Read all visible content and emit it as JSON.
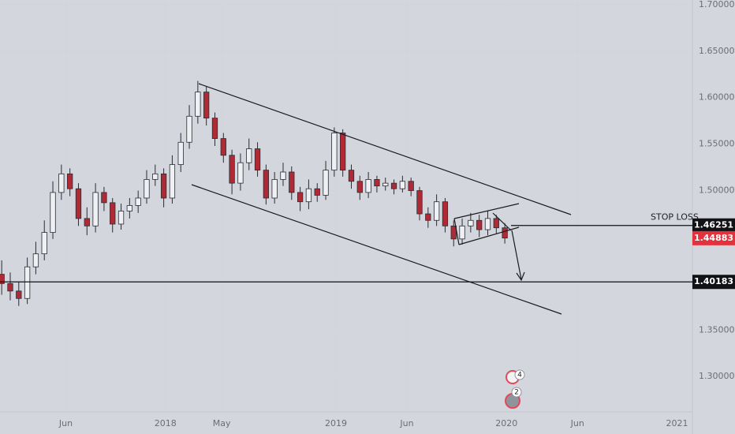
{
  "chart_data": {
    "type": "candlestick",
    "up_color": "#eef0f4",
    "down_color": "#b02a35",
    "wick_color": "#2a2c33",
    "x": [
      2017.04,
      2017.09,
      2017.14,
      2017.19,
      2017.24,
      2017.29,
      2017.34,
      2017.39,
      2017.44,
      2017.49,
      2017.54,
      2017.59,
      2017.64,
      2017.69,
      2017.74,
      2017.79,
      2017.84,
      2017.89,
      2017.94,
      2017.99,
      2018.04,
      2018.09,
      2018.14,
      2018.19,
      2018.24,
      2018.29,
      2018.34,
      2018.39,
      2018.44,
      2018.49,
      2018.54,
      2018.59,
      2018.64,
      2018.69,
      2018.74,
      2018.79,
      2018.84,
      2018.89,
      2018.94,
      2018.99,
      2019.04,
      2019.09,
      2019.14,
      2019.19,
      2019.24,
      2019.29,
      2019.34,
      2019.39,
      2019.44,
      2019.49,
      2019.54,
      2019.59,
      2019.64,
      2019.69,
      2019.74,
      2019.79,
      2019.84,
      2019.89,
      2019.94,
      2019.99
    ],
    "open": [
      1.41,
      1.4,
      1.392,
      1.384,
      1.418,
      1.432,
      1.455,
      1.498,
      1.518,
      1.502,
      1.47,
      1.462,
      1.498,
      1.487,
      1.464,
      1.478,
      1.484,
      1.492,
      1.512,
      1.518,
      1.492,
      1.528,
      1.552,
      1.58,
      1.606,
      1.578,
      1.556,
      1.538,
      1.508,
      1.53,
      1.545,
      1.522,
      1.492,
      1.512,
      1.52,
      1.498,
      1.488,
      1.502,
      1.495,
      1.522,
      1.562,
      1.522,
      1.51,
      1.498,
      1.512,
      1.505,
      1.508,
      1.502,
      1.51,
      1.5,
      1.475,
      1.468,
      1.488,
      1.462,
      1.448,
      1.462,
      1.468,
      1.458,
      1.47,
      1.46
    ],
    "high": [
      1.425,
      1.412,
      1.402,
      1.428,
      1.445,
      1.468,
      1.51,
      1.528,
      1.524,
      1.508,
      1.482,
      1.508,
      1.504,
      1.492,
      1.486,
      1.492,
      1.5,
      1.522,
      1.528,
      1.524,
      1.538,
      1.562,
      1.592,
      1.618,
      1.612,
      1.584,
      1.562,
      1.544,
      1.54,
      1.556,
      1.552,
      1.528,
      1.52,
      1.53,
      1.526,
      1.504,
      1.512,
      1.508,
      1.532,
      1.568,
      1.566,
      1.528,
      1.516,
      1.52,
      1.516,
      1.514,
      1.512,
      1.516,
      1.514,
      1.504,
      1.482,
      1.496,
      1.492,
      1.468,
      1.47,
      1.476,
      1.474,
      1.478,
      1.474,
      1.465
    ],
    "low": [
      1.388,
      1.382,
      1.376,
      1.378,
      1.41,
      1.425,
      1.448,
      1.49,
      1.494,
      1.462,
      1.452,
      1.455,
      1.478,
      1.455,
      1.458,
      1.47,
      1.476,
      1.486,
      1.505,
      1.482,
      1.486,
      1.52,
      1.545,
      1.572,
      1.57,
      1.548,
      1.53,
      1.496,
      1.5,
      1.522,
      1.515,
      1.485,
      1.486,
      1.505,
      1.49,
      1.478,
      1.48,
      1.488,
      1.49,
      1.515,
      1.515,
      1.502,
      1.49,
      1.492,
      1.498,
      1.5,
      1.496,
      1.498,
      1.494,
      1.468,
      1.46,
      1.462,
      1.455,
      1.44,
      1.442,
      1.455,
      1.45,
      1.452,
      1.454,
      1.443
    ],
    "close": [
      1.4,
      1.392,
      1.384,
      1.418,
      1.432,
      1.455,
      1.498,
      1.518,
      1.502,
      1.47,
      1.462,
      1.498,
      1.487,
      1.464,
      1.478,
      1.484,
      1.492,
      1.512,
      1.518,
      1.492,
      1.528,
      1.552,
      1.58,
      1.606,
      1.578,
      1.556,
      1.538,
      1.508,
      1.53,
      1.545,
      1.522,
      1.492,
      1.512,
      1.52,
      1.498,
      1.488,
      1.502,
      1.495,
      1.522,
      1.562,
      1.522,
      1.51,
      1.498,
      1.512,
      1.505,
      1.508,
      1.502,
      1.51,
      1.5,
      1.475,
      1.468,
      1.488,
      1.462,
      1.448,
      1.462,
      1.468,
      1.458,
      1.47,
      1.46,
      1.449
    ],
    "xlim": [
      2017.03,
      2021.09
    ],
    "ylim": [
      1.262,
      1.705
    ],
    "xticks": [
      {
        "value": 2017.416,
        "label": "Jun"
      },
      {
        "value": 2018,
        "label": "2018"
      },
      {
        "value": 2018.33,
        "label": "May"
      },
      {
        "value": 2019,
        "label": "2019"
      },
      {
        "value": 2019.416,
        "label": "Jun"
      },
      {
        "value": 2020,
        "label": "2020"
      },
      {
        "value": 2020.416,
        "label": "Jun"
      },
      {
        "value": 2021,
        "label": "2021"
      }
    ],
    "yticks": [
      {
        "value": 1.3,
        "label": "1.30000"
      },
      {
        "value": 1.35,
        "label": "1.35000"
      },
      {
        "value": 1.4,
        "label": "1.40000"
      },
      {
        "value": 1.45,
        "label": "1.45000"
      },
      {
        "value": 1.5,
        "label": "1.50000"
      },
      {
        "value": 1.55,
        "label": "1.55000"
      },
      {
        "value": 1.6,
        "label": "1.60000"
      },
      {
        "value": 1.65,
        "label": "1.65000"
      },
      {
        "value": 1.7,
        "label": "1.70000"
      }
    ],
    "price_lines": [
      {
        "value": 1.46251,
        "color": "#111216",
        "label": "STOP LOSS"
      },
      {
        "value": 1.40183,
        "color": "#111216"
      }
    ],
    "last_price": {
      "value": 1.44883,
      "color": "#e2323e"
    },
    "events": [
      4,
      2
    ]
  }
}
